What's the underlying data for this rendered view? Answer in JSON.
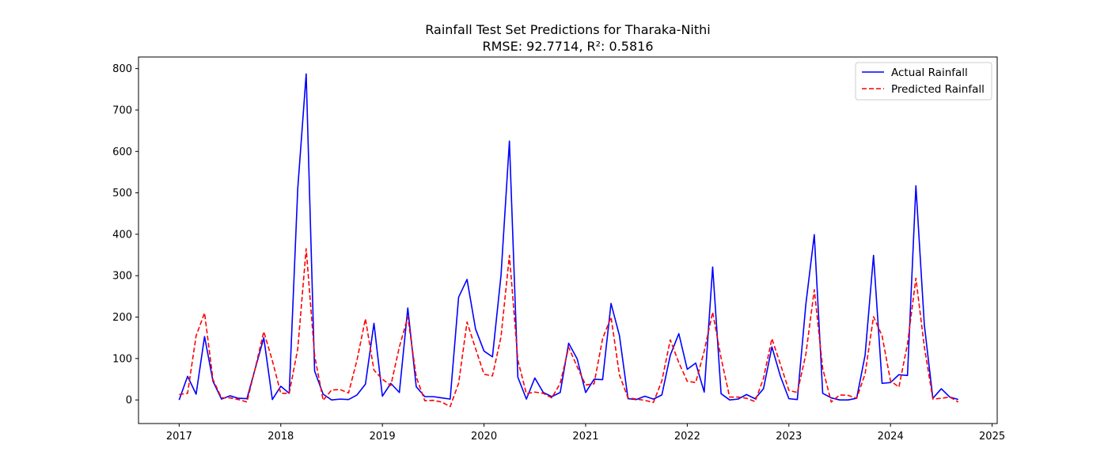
{
  "chart_data": {
    "type": "line",
    "title": "Rainfall Test Set Predictions for Tharaka-Nithi",
    "subtitle": "RMSE: 92.7714, R²: 0.5816",
    "xlabel": "",
    "ylabel": "",
    "xlim": [
      2016.6,
      2025.05
    ],
    "ylim": [
      -57,
      828
    ],
    "xticks": [
      2017,
      2018,
      2019,
      2020,
      2021,
      2022,
      2023,
      2024,
      2025
    ],
    "yticks": [
      0,
      100,
      200,
      300,
      400,
      500,
      600,
      700,
      800
    ],
    "grid": false,
    "legend_position": "top-right",
    "x": [
      2017.0,
      2017.083,
      2017.167,
      2017.25,
      2017.333,
      2017.417,
      2017.5,
      2017.583,
      2017.667,
      2017.75,
      2017.833,
      2017.917,
      2018.0,
      2018.083,
      2018.167,
      2018.25,
      2018.333,
      2018.417,
      2018.5,
      2018.583,
      2018.667,
      2018.75,
      2018.833,
      2018.917,
      2019.0,
      2019.083,
      2019.167,
      2019.25,
      2019.333,
      2019.417,
      2019.5,
      2019.583,
      2019.667,
      2019.75,
      2019.833,
      2019.917,
      2020.0,
      2020.083,
      2020.167,
      2020.25,
      2020.333,
      2020.417,
      2020.5,
      2020.583,
      2020.667,
      2020.75,
      2020.833,
      2020.917,
      2021.0,
      2021.083,
      2021.167,
      2021.25,
      2021.333,
      2021.417,
      2021.5,
      2021.583,
      2021.667,
      2021.75,
      2021.833,
      2021.917,
      2022.0,
      2022.083,
      2022.167,
      2022.25,
      2022.333,
      2022.417,
      2022.5,
      2022.583,
      2022.667,
      2022.75,
      2022.833,
      2022.917,
      2023.0,
      2023.083,
      2023.167,
      2023.25,
      2023.333,
      2023.417,
      2023.5,
      2023.583,
      2023.667,
      2023.75,
      2023.833,
      2023.917,
      2024.0,
      2024.083,
      2024.167,
      2024.25,
      2024.333,
      2024.417,
      2024.5,
      2024.583,
      2024.667
    ],
    "series": [
      {
        "name": "Actual Rainfall",
        "color": "#0000ff",
        "dash": "solid",
        "values": [
          0,
          57,
          14,
          153,
          45,
          2,
          10,
          4,
          3,
          77,
          150,
          1,
          33,
          16,
          510,
          787,
          70,
          14,
          0,
          2,
          1,
          12,
          38,
          185,
          9,
          40,
          18,
          222,
          32,
          8,
          8,
          5,
          2,
          248,
          291,
          171,
          118,
          104,
          300,
          625,
          55,
          2,
          53,
          18,
          8,
          18,
          137,
          99,
          18,
          50,
          49,
          233,
          155,
          3,
          1,
          9,
          2,
          12,
          108,
          160,
          74,
          89,
          19,
          321,
          15,
          0,
          2,
          13,
          3,
          27,
          128,
          57,
          3,
          1,
          231,
          399,
          16,
          5,
          0,
          0,
          4,
          108,
          349,
          40,
          42,
          61,
          59,
          517,
          181,
          4,
          27,
          7,
          1
        ]
      },
      {
        "name": "Predicted Rainfall",
        "color": "#ff0000",
        "dash": "dashed",
        "values": [
          13,
          16,
          155,
          210,
          49,
          5,
          5,
          1,
          -5,
          78,
          165,
          95,
          16,
          16,
          123,
          365,
          107,
          -1,
          24,
          25,
          17,
          96,
          196,
          72,
          50,
          35,
          128,
          200,
          56,
          -2,
          -1,
          -5,
          -16,
          40,
          188,
          124,
          62,
          58,
          152,
          349,
          96,
          15,
          19,
          16,
          5,
          40,
          127,
          80,
          36,
          39,
          148,
          200,
          60,
          5,
          2,
          -1,
          -6,
          46,
          145,
          90,
          45,
          42,
          118,
          212,
          101,
          7,
          7,
          4,
          -4,
          52,
          148,
          86,
          23,
          18,
          110,
          266,
          76,
          -5,
          12,
          11,
          4,
          63,
          201,
          155,
          46,
          31,
          135,
          294,
          128,
          2,
          4,
          7,
          -5
        ]
      }
    ]
  }
}
